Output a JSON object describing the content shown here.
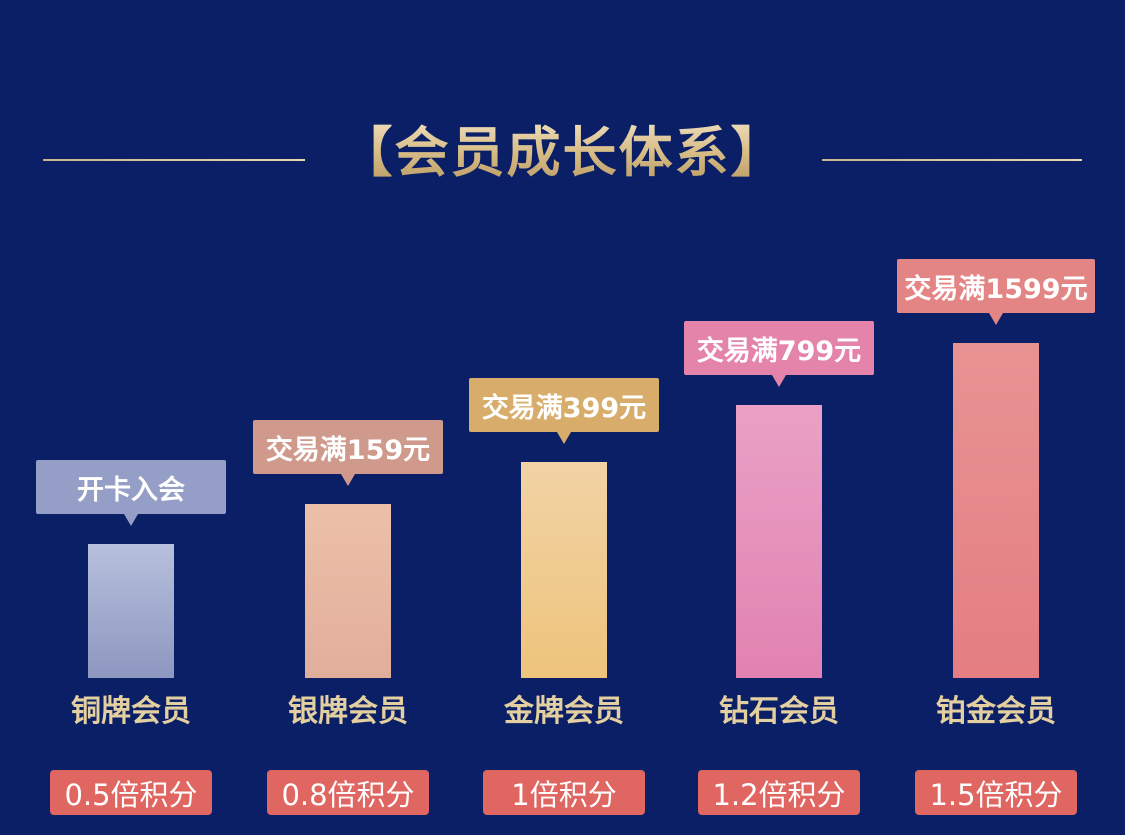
{
  "title": "【会员成长体系】",
  "colors": {
    "background": "#0a1f66",
    "title_gold": "#e6d2a2",
    "points_pill": "#e06662"
  },
  "chart_data": {
    "type": "bar",
    "title": "【会员成长体系】",
    "categories": [
      "铜牌会员",
      "银牌会员",
      "金牌会员",
      "钻石会员",
      "铂金会员"
    ],
    "thresholds": [
      "开卡入会",
      "交易满159元",
      "交易满399元",
      "交易满799元",
      "交易满1599元"
    ],
    "points": [
      "0.5倍积分",
      "0.8倍积分",
      "1倍积分",
      "1.2倍积分",
      "1.5倍积分"
    ],
    "values": [
      0.5,
      0.8,
      1,
      1.2,
      1.5
    ],
    "bar_colors": [
      [
        "#b7c0dc",
        "#8d97c0"
      ],
      [
        "#ecc0a8",
        "#e2ae9c"
      ],
      [
        "#f2d3a5",
        "#eec47c"
      ],
      [
        "#eaa1c6",
        "#e182b0"
      ],
      [
        "#e89393",
        "#e47e83"
      ]
    ],
    "tag_colors": [
      "#959ec6",
      "#cf998c",
      "#d8ad6c",
      "#e584ab",
      "#e48585"
    ]
  }
}
